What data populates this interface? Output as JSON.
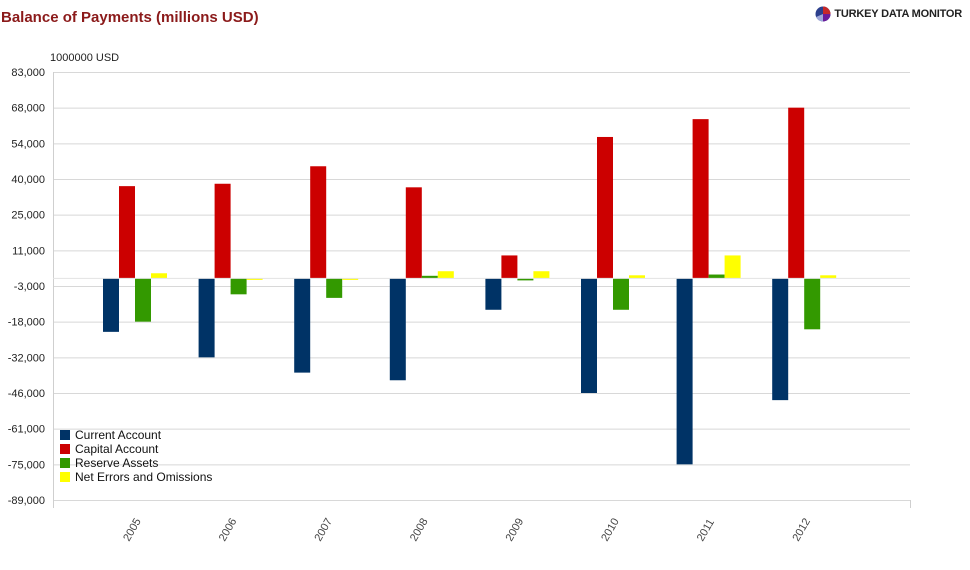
{
  "header": {
    "title": "Balance of Payments (millions USD)",
    "brand": "TURKEY DATA MONITOR"
  },
  "chart_data": {
    "type": "bar",
    "title": "Balance of Payments (millions USD)",
    "ylabel": "1000000 USD",
    "xlabel": "",
    "ylim": [
      -89000,
      83000
    ],
    "yticks": [
      83000,
      68000,
      54000,
      40000,
      25000,
      11000,
      -3000,
      -18000,
      -32000,
      -46000,
      -61000,
      -75000,
      -89000
    ],
    "ytick_labels": [
      "83,000",
      "68,000",
      "54,000",
      "40,000",
      "25,000",
      "11,000",
      "-3,000",
      "-18,000",
      "-32,000",
      "-46,000",
      "-61,000",
      "-75,000",
      "-89,000"
    ],
    "categories": [
      "2005",
      "2006",
      "2007",
      "2008",
      "2009",
      "2010",
      "2011",
      "2012"
    ],
    "series": [
      {
        "name": "Current Account",
        "color": "#003366",
        "values": [
          -22000,
          -32000,
          -38000,
          -41000,
          -13000,
          -46000,
          -75000,
          -49000
        ]
      },
      {
        "name": "Capital Account",
        "color": "#cc0000",
        "values": [
          37000,
          38000,
          45000,
          36500,
          9000,
          56500,
          63500,
          68000
        ]
      },
      {
        "name": "Reserve Assets",
        "color": "#339900",
        "values": [
          -18000,
          -6500,
          -8000,
          1000,
          -800,
          -13000,
          1500,
          -21000
        ]
      },
      {
        "name": "Net Errors and Omissions",
        "color": "#ffff00",
        "values": [
          2000,
          -300,
          -500,
          2800,
          2800,
          1200,
          9000,
          1200
        ]
      }
    ],
    "legend": "bottom-left",
    "grid": true
  }
}
